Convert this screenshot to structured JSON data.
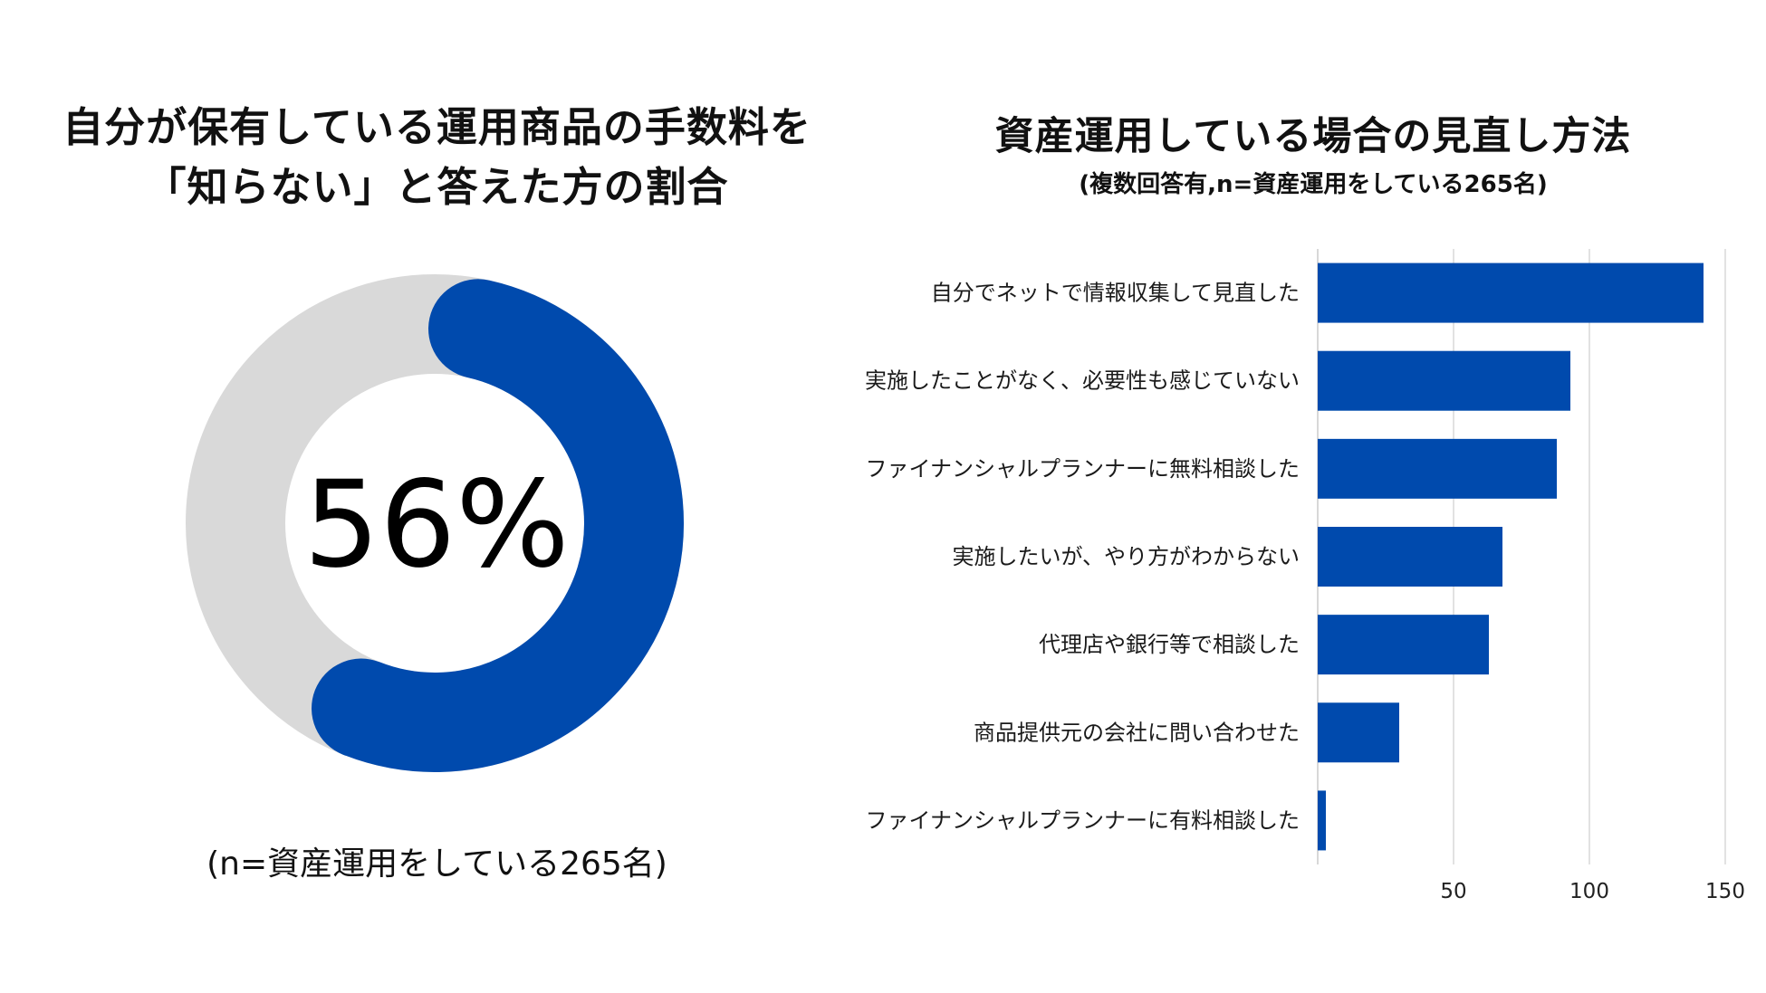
{
  "left": {
    "title_line1": "自分が保有している運用商品の手数料を",
    "title_line2": "「知らない」と答えた方の割合",
    "percent_label": "56%",
    "note": "(n=資産運用をしている265名)"
  },
  "right": {
    "title": "資産運用している場合の見直し方法",
    "subtitle": "(複数回答有,n=資産運用をしている265名)"
  },
  "colors": {
    "accent": "#004aad",
    "track": "#d9d9d9",
    "grid": "#d9d9d9"
  },
  "chart_data": [
    {
      "type": "pie",
      "variant": "donut",
      "values": [
        56,
        44
      ],
      "highlight_color": "#004aad",
      "rest_color": "#d9d9d9",
      "center_label": "56%"
    },
    {
      "type": "bar",
      "orientation": "horizontal",
      "categories": [
        "自分でネットで情報収集して見直した",
        "実施したことがなく、必要性も感じていない",
        "ファイナンシャルプランナーに無料相談した",
        "実施したいが、やり方がわからない",
        "代理店や銀行等で相談した",
        "商品提供元の会社に問い合わせた",
        "ファイナンシャルプランナーに有料相談した"
      ],
      "values": [
        142,
        93,
        88,
        68,
        63,
        30,
        3
      ],
      "xlim": [
        0,
        150
      ],
      "xticks": [
        50,
        100,
        150
      ],
      "grid": true,
      "bar_color": "#004aad"
    }
  ]
}
